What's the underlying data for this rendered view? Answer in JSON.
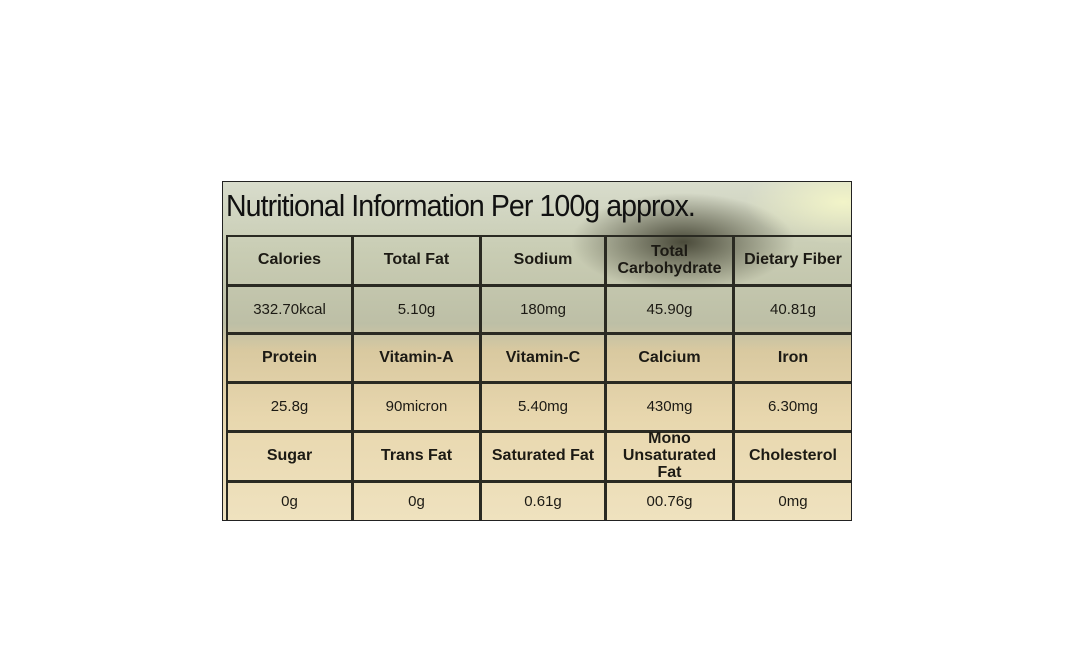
{
  "title": "Nutritional Information Per 100g approx.",
  "table": {
    "rows": [
      [
        "Calories",
        "Total Fat",
        "Sodium",
        "Total Carbohydrate",
        "Dietary Fiber"
      ],
      [
        "332.70kcal",
        "5.10g",
        "180mg",
        "45.90g",
        "40.81g"
      ],
      [
        "Protein",
        "Vitamin-A",
        "Vitamin-C",
        "Calcium",
        "Iron"
      ],
      [
        "25.8g",
        "90micron",
        "5.40mg",
        "430mg",
        "6.30mg"
      ],
      [
        "Sugar",
        "Trans Fat",
        "Saturated Fat",
        "Mono Unsaturated Fat",
        "Cholesterol"
      ],
      [
        "0g",
        "0g",
        "0.61g",
        "00.76g",
        "0mg"
      ]
    ]
  }
}
